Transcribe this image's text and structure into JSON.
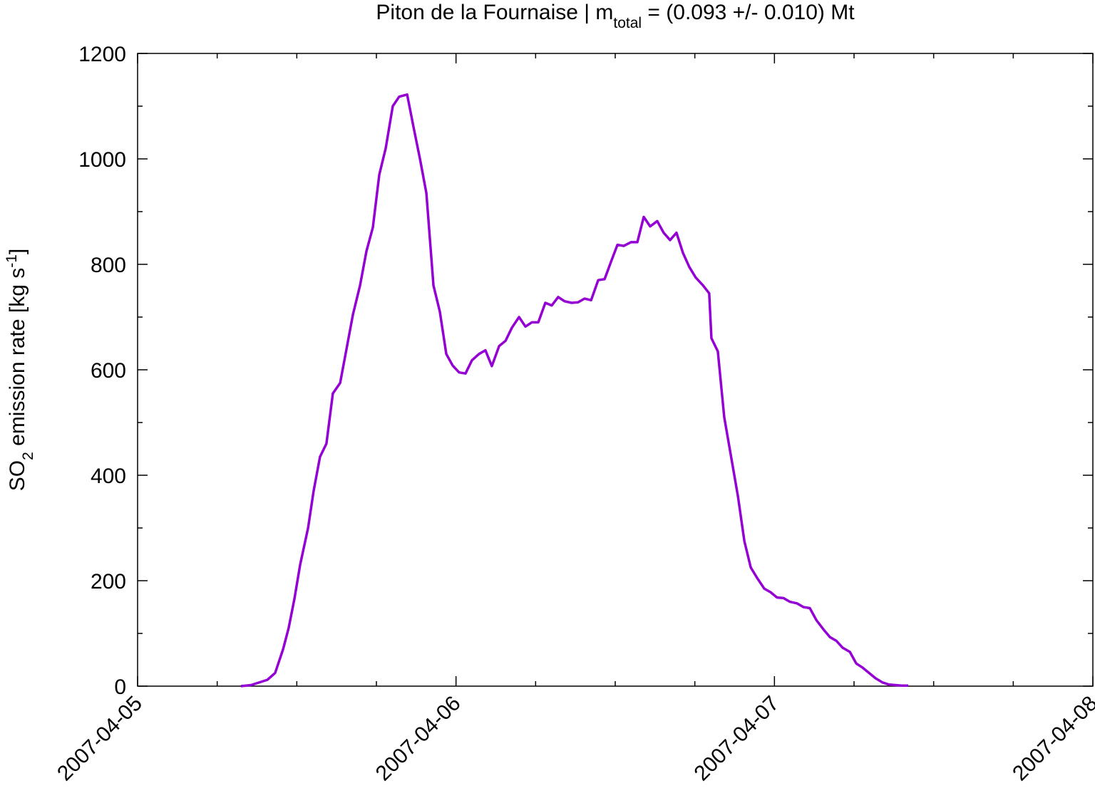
{
  "chart_data": {
    "type": "line",
    "title": [
      "Piton de la Fournaise | m",
      "total",
      " = (0.093 +/- 0.010) Mt"
    ],
    "ylabel": [
      "SO",
      "2",
      " emission rate [kg s",
      "-1",
      "]"
    ],
    "xlim": [
      "2007-04-05",
      "2007-04-08"
    ],
    "xticks": [
      "2007-04-05",
      "2007-04-06",
      "2007-04-07",
      "2007-04-08"
    ],
    "xminorticks": [
      "2007-04-05 06:00",
      "2007-04-05 12:00",
      "2007-04-05 18:00",
      "2007-04-06 06:00",
      "2007-04-06 12:00",
      "2007-04-06 18:00",
      "2007-04-07 06:00",
      "2007-04-07 12:00",
      "2007-04-07 18:00"
    ],
    "ylim": [
      0,
      1200
    ],
    "yticks": [
      0,
      200,
      400,
      600,
      800,
      1000,
      1200
    ],
    "yminorticks": [
      100,
      300,
      500,
      700,
      900,
      1100
    ],
    "grid": false,
    "series": [
      {
        "color": "#9400d3",
        "x": [
          "2007-04-05 07:47",
          "2007-04-05 08:33",
          "2007-04-05 09:47",
          "2007-04-05 10:22",
          "2007-04-05 10:58",
          "2007-04-05 11:23",
          "2007-04-05 11:49",
          "2007-04-05 12:15",
          "2007-04-05 12:51",
          "2007-04-05 13:16",
          "2007-04-05 13:45",
          "2007-04-05 14:14",
          "2007-04-05 14:43",
          "2007-04-05 15:16",
          "2007-04-05 15:45",
          "2007-04-05 16:14",
          "2007-04-05 16:46",
          "2007-04-05 17:15",
          "2007-04-05 17:44",
          "2007-04-05 18:13",
          "2007-04-05 18:42",
          "2007-04-05 19:14",
          "2007-04-05 19:43",
          "2007-04-05 20:19",
          "2007-04-05 20:48",
          "2007-04-05 21:17",
          "2007-04-05 21:46",
          "2007-04-05 22:18",
          "2007-04-05 22:47",
          "2007-04-05 23:16",
          "2007-04-05 23:45",
          "2007-04-06 00:14",
          "2007-04-06 00:43",
          "2007-04-06 01:12",
          "2007-04-06 01:44",
          "2007-04-06 02:13",
          "2007-04-06 02:42",
          "2007-04-06 03:15",
          "2007-04-06 03:44",
          "2007-04-06 04:13",
          "2007-04-06 04:45",
          "2007-04-06 05:14",
          "2007-04-06 05:43",
          "2007-04-06 06:12",
          "2007-04-06 06:44",
          "2007-04-06 07:13",
          "2007-04-06 07:42",
          "2007-04-06 08:11",
          "2007-04-06 08:43",
          "2007-04-06 09:12",
          "2007-04-06 09:41",
          "2007-04-06 10:11",
          "2007-04-06 10:43",
          "2007-04-06 11:12",
          "2007-04-06 11:41",
          "2007-04-06 12:10",
          "2007-04-06 12:39",
          "2007-04-06 13:11",
          "2007-04-06 13:40",
          "2007-04-06 14:09",
          "2007-04-06 14:38",
          "2007-04-06 15:10",
          "2007-04-06 15:39",
          "2007-04-06 16:08",
          "2007-04-06 16:37",
          "2007-04-06 17:06",
          "2007-04-06 17:35",
          "2007-04-06 18:04",
          "2007-04-06 18:37",
          "2007-04-06 19:05",
          "2007-04-06 19:15",
          "2007-04-06 19:44",
          "2007-04-06 20:13",
          "2007-04-06 20:42",
          "2007-04-06 21:15",
          "2007-04-06 21:44",
          "2007-04-06 22:13",
          "2007-04-06 22:42",
          "2007-04-06 23:14",
          "2007-04-06 23:43",
          "2007-04-07 00:12",
          "2007-04-07 00:41",
          "2007-04-07 01:10",
          "2007-04-07 01:42",
          "2007-04-07 02:11",
          "2007-04-07 02:40",
          "2007-04-07 03:10",
          "2007-04-07 03:41",
          "2007-04-07 04:11",
          "2007-04-07 04:40",
          "2007-04-07 05:08",
          "2007-04-07 05:41",
          "2007-04-07 06:10",
          "2007-04-07 06:39",
          "2007-04-07 07:08",
          "2007-04-07 07:37",
          "2007-04-07 08:09",
          "2007-04-07 08:38",
          "2007-04-07 09:07",
          "2007-04-07 09:36",
          "2007-04-07 10:05"
        ],
        "values": [
          0,
          2,
          12,
          25,
          70,
          110,
          165,
          230,
          300,
          370,
          435,
          460,
          555,
          575,
          640,
          705,
          760,
          825,
          870,
          970,
          1020,
          1100,
          1118,
          1122,
          1060,
          1000,
          935,
          760,
          710,
          630,
          608,
          595,
          593,
          618,
          630,
          637,
          607,
          645,
          655,
          680,
          700,
          682,
          690,
          690,
          727,
          722,
          738,
          730,
          727,
          728,
          735,
          732,
          770,
          772,
          805,
          837,
          835,
          842,
          842,
          890,
          872,
          882,
          860,
          846,
          860,
          822,
          795,
          775,
          760,
          745,
          660,
          635,
          510,
          440,
          360,
          275,
          225,
          205,
          185,
          178,
          168,
          167,
          160,
          157,
          150,
          148,
          125,
          108,
          93,
          86,
          73,
          65,
          43,
          35,
          25,
          15,
          7,
          3,
          2,
          1,
          1
        ]
      }
    ]
  }
}
